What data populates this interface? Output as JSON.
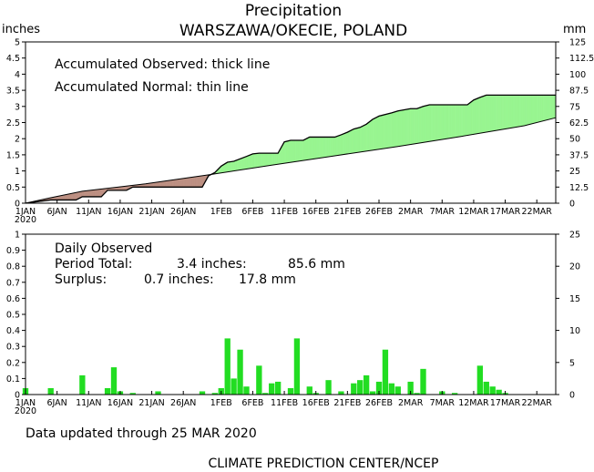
{
  "header": {
    "title": "Precipitation",
    "subtitle": "WARSZAWA/OKECIE, POLAND",
    "left_unit": "inches",
    "right_unit": "mm"
  },
  "top_panel": {
    "legend_observed": "Accumulated Observed: thick line",
    "legend_normal": "Accumulated Normal: thin line"
  },
  "bottom_panel": {
    "title": "Daily Observed",
    "period_label": "Period Total:",
    "period_inches": "3.4 inches:",
    "period_mm": "85.6 mm",
    "surplus_label": "Surplus:",
    "surplus_inches": "0.7 inches:",
    "surplus_mm": "17.8 mm"
  },
  "footer": {
    "updated": "Data updated through 25 MAR 2020",
    "credit": "CLIMATE PREDICTION CENTER/NCEP"
  },
  "colors": {
    "surplus_fill": "#98f590",
    "deficit_fill": "#bc8f82",
    "bar_fill": "#22dd22"
  },
  "chart_data": [
    {
      "type": "line",
      "title": "Accumulated Observed / Accumulated Normal",
      "x_day_range": [
        1,
        85
      ],
      "x_ticks": [
        {
          "day": 1,
          "label": "1JAN",
          "label2": "2020"
        },
        {
          "day": 6,
          "label": "6JAN"
        },
        {
          "day": 11,
          "label": "11JAN"
        },
        {
          "day": 16,
          "label": "16JAN"
        },
        {
          "day": 21,
          "label": "21JAN"
        },
        {
          "day": 26,
          "label": "26JAN"
        },
        {
          "day": 32,
          "label": "1FEB"
        },
        {
          "day": 37,
          "label": "6FEB"
        },
        {
          "day": 42,
          "label": "11FEB"
        },
        {
          "day": 47,
          "label": "16FEB"
        },
        {
          "day": 52,
          "label": "21FEB"
        },
        {
          "day": 57,
          "label": "26FEB"
        },
        {
          "day": 62,
          "label": "2MAR"
        },
        {
          "day": 67,
          "label": "7MAR"
        },
        {
          "day": 72,
          "label": "12MAR"
        },
        {
          "day": 77,
          "label": "17MAR"
        },
        {
          "day": 82,
          "label": "22MAR"
        }
      ],
      "y_left_ticks": [
        "0",
        "0.5",
        "1",
        "1.5",
        "2",
        "2.5",
        "3",
        "3.5",
        "4",
        "4.5",
        "5"
      ],
      "y_left_range": [
        0,
        5
      ],
      "y_right_ticks": [
        "0",
        "12.5",
        "25",
        "37.5",
        "50",
        "62.5",
        "75",
        "87.5",
        "100",
        "112.5",
        "125"
      ],
      "series": [
        {
          "name": "Accumulated Observed",
          "x": [
            1,
            5,
            9,
            10,
            13,
            14,
            17,
            18,
            22,
            29,
            30,
            31,
            32,
            33,
            34,
            36,
            37,
            38,
            41,
            42,
            43,
            45,
            46,
            49,
            50,
            51,
            52,
            53,
            54,
            55,
            56,
            57,
            59,
            60,
            62,
            63,
            64,
            65,
            71,
            72,
            73,
            74,
            85
          ],
          "y": [
            0.0,
            0.1,
            0.1,
            0.2,
            0.2,
            0.4,
            0.4,
            0.5,
            0.5,
            0.5,
            0.85,
            0.95,
            1.15,
            1.27,
            1.3,
            1.45,
            1.53,
            1.55,
            1.55,
            1.9,
            1.95,
            1.95,
            2.05,
            2.05,
            2.05,
            2.12,
            2.2,
            2.3,
            2.35,
            2.45,
            2.6,
            2.7,
            2.8,
            2.86,
            2.93,
            2.93,
            3.0,
            3.05,
            3.05,
            3.2,
            3.28,
            3.35,
            3.35
          ]
        },
        {
          "name": "Accumulated Normal",
          "x": [
            1,
            5,
            10,
            20,
            30,
            40,
            50,
            60,
            70,
            80,
            85
          ],
          "y": [
            0.0,
            0.17,
            0.37,
            0.6,
            0.88,
            1.18,
            1.47,
            1.76,
            2.07,
            2.4,
            2.65
          ]
        }
      ]
    },
    {
      "type": "bar",
      "title": "Daily Observed",
      "y_left_ticks": [
        "0",
        "0.1",
        "0.2",
        "0.3",
        "0.4",
        "0.5",
        "0.6",
        "0.7",
        "0.8",
        "0.9",
        "1"
      ],
      "y_left_range": [
        0,
        1
      ],
      "y_right_ticks": [
        "0",
        "5",
        "10",
        "15",
        "20",
        "25"
      ],
      "x": [
        1,
        5,
        10,
        14,
        15,
        16,
        18,
        22,
        29,
        31,
        32,
        33,
        34,
        35,
        36,
        38,
        39,
        40,
        41,
        43,
        44,
        46,
        47,
        49,
        51,
        53,
        54,
        55,
        56,
        57,
        58,
        59,
        60,
        62,
        63,
        64,
        67,
        69,
        73,
        74,
        75,
        76,
        77
      ],
      "values": [
        0.04,
        0.04,
        0.12,
        0.04,
        0.17,
        0.02,
        0.01,
        0.02,
        0.02,
        0.01,
        0.04,
        0.35,
        0.1,
        0.28,
        0.05,
        0.18,
        0.01,
        0.07,
        0.08,
        0.04,
        0.35,
        0.05,
        0.01,
        0.09,
        0.02,
        0.07,
        0.09,
        0.12,
        0.02,
        0.08,
        0.28,
        0.07,
        0.05,
        0.08,
        0.01,
        0.16,
        0.02,
        0.01,
        0.18,
        0.08,
        0.05,
        0.03,
        0.01
      ]
    }
  ]
}
